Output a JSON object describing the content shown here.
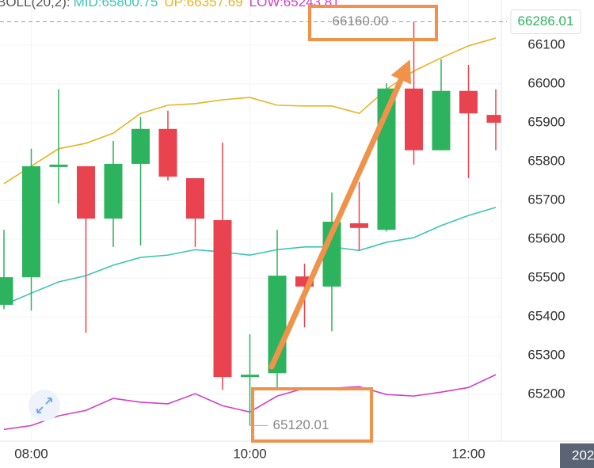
{
  "chart_data": {
    "type": "candlestick",
    "indicator": "BOLL(20,2):",
    "categories": [
      null,
      "08:00",
      null,
      null,
      null,
      null,
      null,
      null,
      null,
      "10:00",
      null,
      null,
      null,
      null,
      null,
      null,
      null,
      "12:00",
      null
    ],
    "open": [
      65431,
      65502,
      65790,
      65788,
      65653,
      65794,
      65884,
      65757,
      65649,
      65249,
      65255,
      65504,
      65478,
      65641,
      65624,
      65988,
      65829,
      65982,
      65920
    ],
    "high": [
      65624,
      65833,
      65986,
      65788,
      65853,
      65914,
      65931,
      65757,
      65849,
      65355,
      65624,
      65537,
      65720,
      65747,
      66002,
      66160,
      66063,
      66049,
      65986
    ],
    "low": [
      65420,
      65416,
      65692,
      65359,
      65580,
      65584,
      65751,
      65580,
      65212,
      65120.01,
      65216,
      65373,
      65363,
      65571,
      65620,
      65792,
      65829,
      65757,
      65829
    ],
    "close": [
      65502,
      65788,
      65792,
      65653,
      65794,
      65884,
      65761,
      65653,
      65245,
      65251,
      65506,
      65478,
      65645,
      65629,
      65988,
      65829,
      65982,
      65924,
      65900
    ],
    "up_color": "#2db35d",
    "down_color": "#e8434f",
    "series": [
      {
        "name": "MID:",
        "latest": 65800.75,
        "color": "#3cc4b4",
        "values": [
          65431,
          65461,
          65490,
          65506,
          65533,
          65553,
          65559,
          65573,
          65567,
          65559,
          65573,
          65580,
          65580,
          65571,
          65592,
          65604,
          65635,
          65661,
          65682
        ]
      },
      {
        "name": "UP:",
        "latest": 66357.69,
        "color": "#e6b422",
        "values": [
          65743,
          65788,
          65833,
          65847,
          65873,
          65924,
          65945,
          65949,
          65959,
          65965,
          65945,
          65943,
          65943,
          65924,
          65986,
          66033,
          66067,
          66098,
          66118
        ]
      },
      {
        "name": "LOW:",
        "latest": 65243.81,
        "color": "#d23fc8",
        "values": [
          65110,
          65120,
          65145,
          65159,
          65190,
          65180,
          65176,
          65202,
          65171,
          65155,
          65196,
          65216,
          65216,
          65220,
          65200,
          65196,
          65206,
          65218,
          65251
        ]
      }
    ],
    "ylim": [
      65080,
      66216
    ],
    "yticks": [
      65200,
      65300,
      65400,
      65500,
      65600,
      65700,
      65800,
      65900,
      66000,
      66100
    ],
    "grid": true,
    "current_price": 66286.01,
    "high_marker": {
      "value": 66160,
      "label": "66160.00"
    },
    "low_marker": 65120.01,
    "date_label": "202"
  }
}
